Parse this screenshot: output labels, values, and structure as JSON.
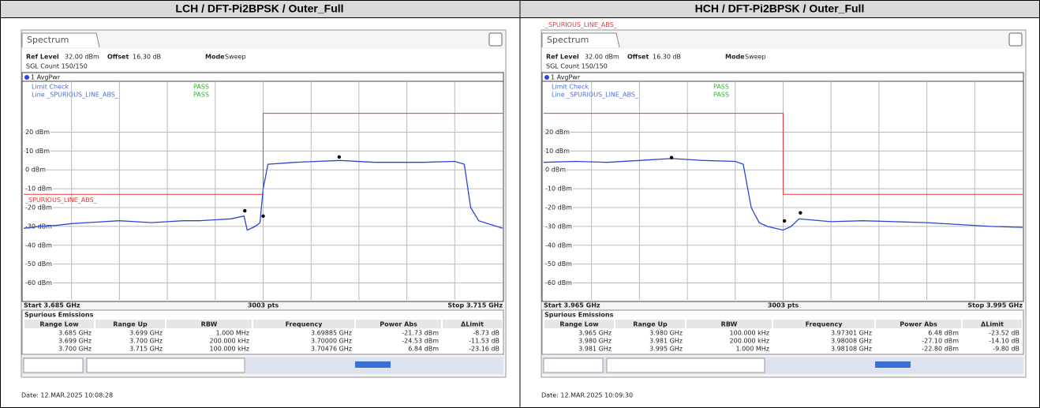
{
  "panels": [
    {
      "header": "LCH / DFT-Pi2BPSK / Outer_Full",
      "tab": "Spectrum",
      "ref_level_label": "Ref Level",
      "ref_level": "32.00 dBm",
      "offset_label": "Offset",
      "offset": "16.30 dB",
      "mode_label": "Mode",
      "mode": "Sweep",
      "sgl_count": "SGL Count 150/150",
      "trace_label": "1 AvgPwr",
      "limit_check": "Limit Check",
      "limit_check_result": "PASS",
      "line_label": "Line _SPURIOUS_LINE_ABS_",
      "line_result": "PASS",
      "limit_name": "_SPURIOUS_LINE_ABS_",
      "chart_data": {
        "type": "line",
        "xlim": [
          3.685,
          3.715
        ],
        "ylim": [
          -69,
          47
        ],
        "yticks": [
          {
            "value": 20,
            "label": "20 dBm"
          },
          {
            "value": 10,
            "label": "10 dBm"
          },
          {
            "value": 0,
            "label": "0 dBm"
          },
          {
            "value": -10,
            "label": "-10 dBm"
          },
          {
            "value": -20,
            "label": "-20 dBm"
          },
          {
            "value": -30,
            "label": "-30 dBm"
          },
          {
            "value": -40,
            "label": "-40 dBm"
          },
          {
            "value": -50,
            "label": "-50 dBm"
          },
          {
            "value": -60,
            "label": "-60 dBm"
          }
        ],
        "series": [
          {
            "name": "1 AvgPwr",
            "color": "#2a46d8",
            "x": [
              3.685,
              3.686,
              3.687,
              3.688,
              3.689,
              3.69,
              3.691,
              3.692,
              3.693,
              3.694,
              3.695,
              3.696,
              3.697,
              3.698,
              3.6988,
              3.699,
              3.6995,
              3.6998,
              3.7,
              3.7003,
              3.702,
              3.7048,
              3.707,
              3.71,
              3.712,
              3.7126,
              3.713,
              3.7135,
              3.715
            ],
            "values": [
              -31,
              -30,
              -29.5,
              -28.5,
              -28,
              -27.5,
              -27,
              -27.5,
              -28,
              -27.5,
              -27,
              -27,
              -26.5,
              -26,
              -24.5,
              -32,
              -30,
              -28,
              -10,
              3,
              4,
              5,
              4,
              4,
              4.5,
              3,
              -20,
              -27,
              -31
            ]
          },
          {
            "name": "_SPURIOUS_LINE_ABS_",
            "color": "#e03a3a",
            "x": [
              3.685,
              3.7,
              3.7,
              3.715
            ],
            "values": [
              -13,
              -13,
              30,
              30
            ]
          }
        ],
        "markers": {
          "x": [
            3.69885,
            3.7,
            3.70476
          ],
          "values": [
            -21.73,
            -24.53,
            6.84
          ]
        }
      },
      "start": "Start 3.685 GHz",
      "pts": "3003 pts",
      "stop": "Stop 3.715 GHz",
      "table": {
        "title": "Spurious Emissions",
        "columns": [
          "Range Low",
          "Range Up",
          "RBW",
          "Frequency",
          "Power Abs",
          "ΔLimit"
        ],
        "rows": [
          [
            "3.685 GHz",
            "3.699 GHz",
            "1.000 MHz",
            "3.69885 GHz",
            "-21.73 dBm",
            "-8.73 dB"
          ],
          [
            "3.699 GHz",
            "3.700 GHz",
            "200.000 kHz",
            "3.70000 GHz",
            "-24.53 dBm",
            "-11.53 dB"
          ],
          [
            "3.700 GHz",
            "3.715 GHz",
            "100.000 kHz",
            "3.70476 GHz",
            "6.84 dBm",
            "-23.16 dB"
          ]
        ]
      },
      "date": "Date: 12.MAR.2025 10:08:28"
    },
    {
      "header": "HCH / DFT-Pi2BPSK / Outer_Full",
      "tab": "Spectrum",
      "ref_level_label": "Ref Level",
      "ref_level": "32.00 dBm",
      "offset_label": "Offset",
      "offset": "16.30 dB",
      "mode_label": "Mode",
      "mode": "Sweep",
      "sgl_count": "SGL Count 150/150",
      "trace_label": "1 AvgPwr",
      "limit_check": "Limit Check",
      "limit_check_result": "PASS",
      "line_label": "Line _SPURIOUS_LINE_ABS_",
      "line_result": "PASS",
      "limit_name": "_SPURIOUS_LINE_ABS_",
      "chart_data": {
        "type": "line",
        "xlim": [
          3.965,
          3.995
        ],
        "ylim": [
          -69,
          47
        ],
        "yticks": [
          {
            "value": 20,
            "label": "20 dBm"
          },
          {
            "value": 10,
            "label": "10 dBm"
          },
          {
            "value": 0,
            "label": "0 dBm"
          },
          {
            "value": -10,
            "label": "-10 dBm"
          },
          {
            "value": -20,
            "label": "-20 dBm"
          },
          {
            "value": -30,
            "label": "-30 dBm"
          },
          {
            "value": -40,
            "label": "-40 dBm"
          },
          {
            "value": -50,
            "label": "-50 dBm"
          },
          {
            "value": -60,
            "label": "-60 dBm"
          }
        ],
        "series": [
          {
            "name": "1 AvgPwr",
            "color": "#2a46d8",
            "x": [
              3.965,
              3.967,
              3.969,
              3.971,
              3.973,
              3.975,
              3.977,
              3.9775,
              3.978,
              3.9785,
              3.979,
              3.98,
              3.9805,
              3.981,
              3.983,
              3.985,
              3.987,
              3.989,
              3.991,
              3.993,
              3.995
            ],
            "values": [
              4,
              4.5,
              4,
              5,
              6,
              5,
              4.5,
              3,
              -20,
              -28,
              -30,
              -32,
              -30,
              -26,
              -27.5,
              -27,
              -27.5,
              -28,
              -29,
              -30,
              -30.5
            ]
          },
          {
            "name": "_SPURIOUS_LINE_ABS_",
            "color": "#e03a3a",
            "x": [
              3.965,
              3.98,
              3.98,
              3.995
            ],
            "values": [
              30,
              30,
              -13,
              -13
            ]
          }
        ],
        "markers": {
          "x": [
            3.97301,
            3.98008,
            3.98108
          ],
          "values": [
            6.48,
            -27.1,
            -22.8
          ]
        }
      },
      "start": "Start 3.965 GHz",
      "pts": "3003 pts",
      "stop": "Stop 3.995 GHz",
      "table": {
        "title": "Spurious Emissions",
        "columns": [
          "Range Low",
          "Range Up",
          "RBW",
          "Frequency",
          "Power Abs",
          "ΔLimit"
        ],
        "rows": [
          [
            "3.965 GHz",
            "3.980 GHz",
            "100.000 kHz",
            "3.97301 GHz",
            "6.48 dBm",
            "-23.52 dB"
          ],
          [
            "3.980 GHz",
            "3.981 GHz",
            "200.000 kHz",
            "3.98008 GHz",
            "-27.10 dBm",
            "-14.10 dB"
          ],
          [
            "3.981 GHz",
            "3.995 GHz",
            "1.000 MHz",
            "3.98108 GHz",
            "-22.80 dBm",
            "-9.80 dB"
          ]
        ]
      },
      "date": "Date: 12.MAR.2025 10:09:30"
    }
  ]
}
